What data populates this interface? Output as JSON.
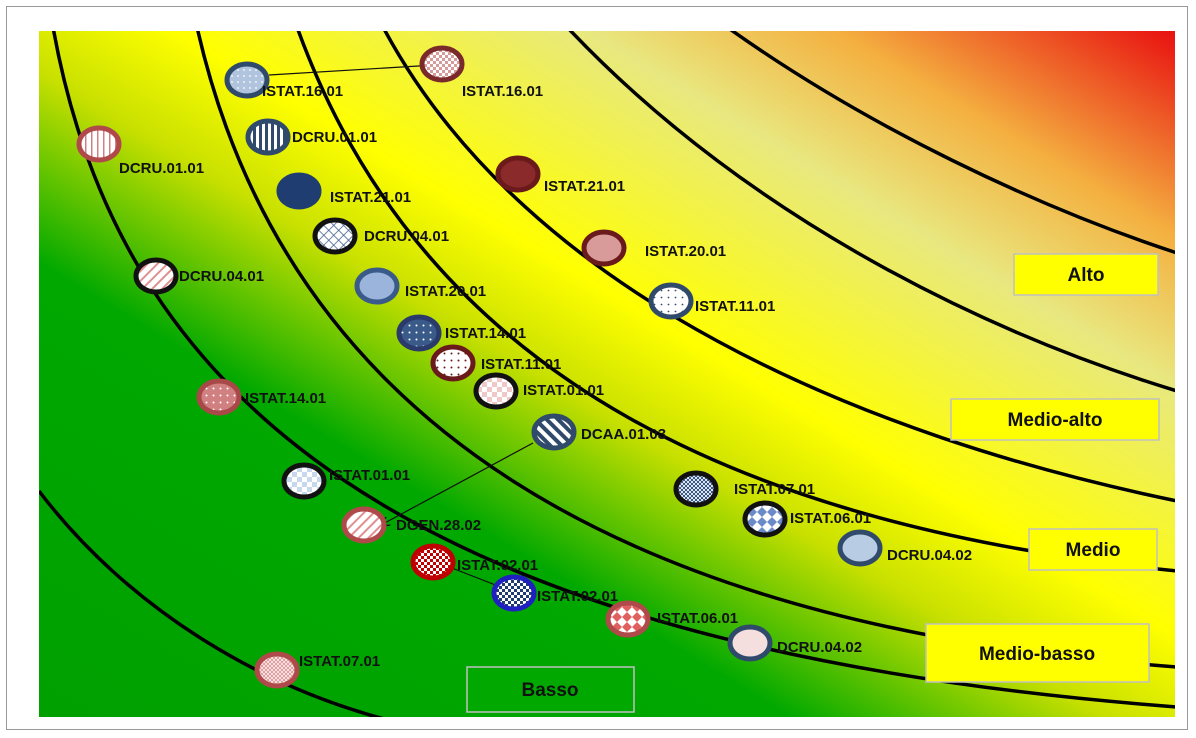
{
  "zones": [
    {
      "label": "Alto"
    },
    {
      "label": "Medio-alto"
    },
    {
      "label": "Medio"
    },
    {
      "label": "Medio-basso"
    },
    {
      "label": "Basso"
    }
  ],
  "markers": [
    {
      "label": "ISTAT.16.01",
      "fill": "#b0c4de",
      "border": "#2f4a6a",
      "pattern": "dots"
    },
    {
      "label": "ISTAT.16.01",
      "fill": "#f0d0d0",
      "border": "#7a2a2a",
      "pattern": "checker"
    },
    {
      "label": "DCRU.01.01",
      "fill": "#ffffff",
      "border": "#2f4a6a",
      "pattern": "vstripes-dark"
    },
    {
      "label": "DCRU.01.01",
      "fill": "#ffffff",
      "border": "#b04a4a",
      "pattern": "vstripes-red"
    },
    {
      "label": "ISTAT.21.01",
      "fill": "#1f3d70",
      "border": "#1f3d70",
      "pattern": "solid"
    },
    {
      "label": "ISTAT.21.01",
      "fill": "#8a2a2a",
      "border": "#6a1a1a",
      "pattern": "solid"
    },
    {
      "label": "DCRU.04.01",
      "fill": "#ffffff",
      "border": "#111111",
      "pattern": "grid-blue"
    },
    {
      "label": "ISTAT.20.01",
      "fill": "#d99a9a",
      "border": "#6a1a1a",
      "pattern": "solid"
    },
    {
      "label": "DCRU.04.01",
      "fill": "#ffffff",
      "border": "#111111",
      "pattern": "diag-red"
    },
    {
      "label": "ISTAT.20.01",
      "fill": "#9ab4dc",
      "border": "#3a5a8a",
      "pattern": "solid"
    },
    {
      "label": "ISTAT.11.01",
      "fill": "#ffffff",
      "border": "#2f4a6a",
      "pattern": "dots-blue"
    },
    {
      "label": "ISTAT.14.01",
      "fill": "#3a5a8a",
      "border": "#2a3a6a",
      "pattern": "dots-white"
    },
    {
      "label": "ISTAT.11.01",
      "fill": "#ffffff",
      "border": "#6a1a1a",
      "pattern": "dots-red"
    },
    {
      "label": "ISTAT.01.01",
      "fill": "#f4d8d8",
      "border": "#111111",
      "pattern": "checker-light"
    },
    {
      "label": "ISTAT.14.01",
      "fill": "#d08080",
      "border": "#a84848",
      "pattern": "dots-white"
    },
    {
      "label": "DCAA.01.03",
      "fill": "#ffffff",
      "border": "#2f4a6a",
      "pattern": "diag-blue"
    },
    {
      "label": "ISTAT.07.01",
      "fill": "#8aa0c8",
      "border": "#111111",
      "pattern": "fine-grid"
    },
    {
      "label": "ISTAT.01.01",
      "fill": "#e8eef6",
      "border": "#111111",
      "pattern": "checker-blue"
    },
    {
      "label": "ISTAT.06.01",
      "fill": "#ffffff",
      "border": "#111111",
      "pattern": "diamond-blue"
    },
    {
      "label": "DGEN.28.02",
      "fill": "#ffffff",
      "border": "#b04a4a",
      "pattern": "diag-red"
    },
    {
      "label": "DCRU.04.02",
      "fill": "#b8cce4",
      "border": "#2f4a6a",
      "pattern": "solid"
    },
    {
      "label": "ISTAT.02.01",
      "fill": "#c00000",
      "border": "#c00000",
      "pattern": "checker-white"
    },
    {
      "label": "ISTAT.02.01",
      "fill": "#1f3d70",
      "border": "#2020c0",
      "pattern": "checker-white"
    },
    {
      "label": "ISTAT.06.01",
      "fill": "#e06060",
      "border": "#b04a4a",
      "pattern": "diamond-white"
    },
    {
      "label": "DCRU.04.02",
      "fill": "#f4dede",
      "border": "#2f4a6a",
      "pattern": "solid"
    },
    {
      "label": "ISTAT.07.01",
      "fill": "#f0c0c0",
      "border": "#b04a4a",
      "pattern": "fine-grid-red"
    }
  ],
  "colors": {
    "low": "#00a000",
    "mid": "#ffff00",
    "high": "#e81010",
    "curve": "#000000"
  }
}
